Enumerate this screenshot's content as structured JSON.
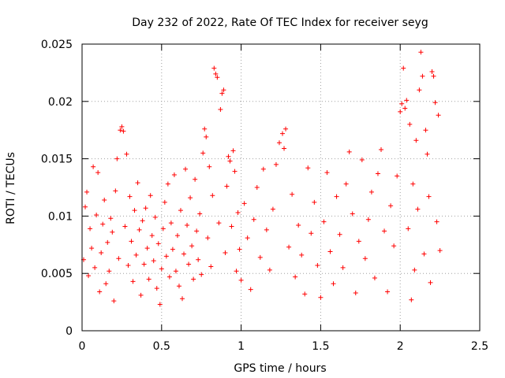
{
  "chart_data": {
    "type": "scatter",
    "title": "Day 232 of 2022, Rate Of TEC Index for receiver seyg",
    "xlabel": "GPS time / hours",
    "ylabel": "ROTI / TECUs",
    "xlim": [
      0,
      2.5
    ],
    "ylim": [
      0,
      0.025
    ],
    "x_ticks": [
      0,
      0.5,
      1,
      1.5,
      2,
      2.5
    ],
    "x_tick_labels": [
      "0",
      "0.5",
      "1",
      "1.5",
      "2",
      "2.5"
    ],
    "y_ticks": [
      0,
      0.005,
      0.01,
      0.015,
      0.02,
      0.025
    ],
    "y_tick_labels": [
      "0",
      "0.005",
      "0.01",
      "0.015",
      "0.02",
      "0.025"
    ],
    "grid": true,
    "marker": "+",
    "color": "#ff0000",
    "points": [
      [
        0.01,
        0.0062
      ],
      [
        0.02,
        0.0108
      ],
      [
        0.03,
        0.0121
      ],
      [
        0.04,
        0.0048
      ],
      [
        0.05,
        0.0089
      ],
      [
        0.06,
        0.0072
      ],
      [
        0.07,
        0.0143
      ],
      [
        0.08,
        0.0055
      ],
      [
        0.09,
        0.0101
      ],
      [
        0.1,
        0.0138
      ],
      [
        0.11,
        0.0034
      ],
      [
        0.12,
        0.0068
      ],
      [
        0.13,
        0.0093
      ],
      [
        0.14,
        0.0114
      ],
      [
        0.15,
        0.0041
      ],
      [
        0.16,
        0.0077
      ],
      [
        0.17,
        0.0052
      ],
      [
        0.18,
        0.0098
      ],
      [
        0.19,
        0.0086
      ],
      [
        0.2,
        0.0026
      ],
      [
        0.21,
        0.0122
      ],
      [
        0.22,
        0.015
      ],
      [
        0.23,
        0.0063
      ],
      [
        0.24,
        0.0175
      ],
      [
        0.25,
        0.0178
      ],
      [
        0.26,
        0.0174
      ],
      [
        0.27,
        0.0091
      ],
      [
        0.28,
        0.0154
      ],
      [
        0.29,
        0.0057
      ],
      [
        0.3,
        0.0117
      ],
      [
        0.31,
        0.0078
      ],
      [
        0.32,
        0.0043
      ],
      [
        0.33,
        0.0105
      ],
      [
        0.34,
        0.0066
      ],
      [
        0.35,
        0.0129
      ],
      [
        0.36,
        0.0088
      ],
      [
        0.37,
        0.0031
      ],
      [
        0.38,
        0.0096
      ],
      [
        0.39,
        0.0058
      ],
      [
        0.4,
        0.0107
      ],
      [
        0.41,
        0.0072
      ],
      [
        0.42,
        0.0045
      ],
      [
        0.43,
        0.0118
      ],
      [
        0.44,
        0.0083
      ],
      [
        0.45,
        0.0061
      ],
      [
        0.46,
        0.0099
      ],
      [
        0.47,
        0.0037
      ],
      [
        0.48,
        0.0076
      ],
      [
        0.49,
        0.0023
      ],
      [
        0.5,
        0.0054
      ],
      [
        0.51,
        0.0089
      ],
      [
        0.52,
        0.0112
      ],
      [
        0.53,
        0.0065
      ],
      [
        0.54,
        0.0128
      ],
      [
        0.55,
        0.0047
      ],
      [
        0.56,
        0.0094
      ],
      [
        0.57,
        0.0071
      ],
      [
        0.58,
        0.0136
      ],
      [
        0.59,
        0.0052
      ],
      [
        0.6,
        0.0083
      ],
      [
        0.61,
        0.0039
      ],
      [
        0.62,
        0.0105
      ],
      [
        0.63,
        0.0028
      ],
      [
        0.64,
        0.0067
      ],
      [
        0.65,
        0.0141
      ],
      [
        0.66,
        0.0092
      ],
      [
        0.67,
        0.0058
      ],
      [
        0.68,
        0.0116
      ],
      [
        0.69,
        0.0074
      ],
      [
        0.7,
        0.0045
      ],
      [
        0.71,
        0.0132
      ],
      [
        0.72,
        0.0087
      ],
      [
        0.73,
        0.0062
      ],
      [
        0.74,
        0.0102
      ],
      [
        0.75,
        0.0049
      ],
      [
        0.76,
        0.0155
      ],
      [
        0.77,
        0.0176
      ],
      [
        0.78,
        0.0169
      ],
      [
        0.79,
        0.0081
      ],
      [
        0.8,
        0.0143
      ],
      [
        0.81,
        0.0056
      ],
      [
        0.82,
        0.0118
      ],
      [
        0.83,
        0.0229
      ],
      [
        0.84,
        0.0224
      ],
      [
        0.85,
        0.0221
      ],
      [
        0.86,
        0.0094
      ],
      [
        0.87,
        0.0193
      ],
      [
        0.88,
        0.0207
      ],
      [
        0.89,
        0.021
      ],
      [
        0.9,
        0.0068
      ],
      [
        0.91,
        0.0126
      ],
      [
        0.92,
        0.0152
      ],
      [
        0.93,
        0.0148
      ],
      [
        0.94,
        0.0091
      ],
      [
        0.95,
        0.0157
      ],
      [
        0.96,
        0.0139
      ],
      [
        0.97,
        0.0052
      ],
      [
        0.98,
        0.0103
      ],
      [
        0.99,
        0.0071
      ],
      [
        1.0,
        0.0044
      ],
      [
        1.02,
        0.0111
      ],
      [
        1.04,
        0.0081
      ],
      [
        1.06,
        0.0036
      ],
      [
        1.08,
        0.0097
      ],
      [
        1.1,
        0.0125
      ],
      [
        1.12,
        0.0064
      ],
      [
        1.14,
        0.0141
      ],
      [
        1.16,
        0.0088
      ],
      [
        1.18,
        0.0053
      ],
      [
        1.2,
        0.0106
      ],
      [
        1.22,
        0.0145
      ],
      [
        1.24,
        0.0164
      ],
      [
        1.26,
        0.0172
      ],
      [
        1.27,
        0.0159
      ],
      [
        1.28,
        0.0176
      ],
      [
        1.3,
        0.0073
      ],
      [
        1.32,
        0.0119
      ],
      [
        1.34,
        0.0047
      ],
      [
        1.36,
        0.0092
      ],
      [
        1.38,
        0.0066
      ],
      [
        1.4,
        0.0032
      ],
      [
        1.42,
        0.0142
      ],
      [
        1.44,
        0.0085
      ],
      [
        1.46,
        0.0112
      ],
      [
        1.48,
        0.0057
      ],
      [
        1.5,
        0.0029
      ],
      [
        1.52,
        0.0095
      ],
      [
        1.54,
        0.0138
      ],
      [
        1.56,
        0.0069
      ],
      [
        1.58,
        0.0041
      ],
      [
        1.6,
        0.0117
      ],
      [
        1.62,
        0.0084
      ],
      [
        1.64,
        0.0055
      ],
      [
        1.66,
        0.0128
      ],
      [
        1.68,
        0.0156
      ],
      [
        1.7,
        0.0102
      ],
      [
        1.72,
        0.0033
      ],
      [
        1.74,
        0.0078
      ],
      [
        1.76,
        0.0149
      ],
      [
        1.78,
        0.0063
      ],
      [
        1.8,
        0.0097
      ],
      [
        1.82,
        0.0121
      ],
      [
        1.84,
        0.0046
      ],
      [
        1.86,
        0.0137
      ],
      [
        1.88,
        0.0158
      ],
      [
        1.9,
        0.0087
      ],
      [
        1.92,
        0.0034
      ],
      [
        1.94,
        0.0109
      ],
      [
        1.96,
        0.0074
      ],
      [
        1.98,
        0.0135
      ],
      [
        2.0,
        0.0191
      ],
      [
        2.01,
        0.0198
      ],
      [
        2.02,
        0.0229
      ],
      [
        2.03,
        0.0194
      ],
      [
        2.04,
        0.0201
      ],
      [
        2.05,
        0.0089
      ],
      [
        2.06,
        0.018
      ],
      [
        2.07,
        0.0027
      ],
      [
        2.08,
        0.0128
      ],
      [
        2.09,
        0.0053
      ],
      [
        2.1,
        0.0166
      ],
      [
        2.11,
        0.0106
      ],
      [
        2.12,
        0.021
      ],
      [
        2.13,
        0.0243
      ],
      [
        2.14,
        0.0222
      ],
      [
        2.15,
        0.0067
      ],
      [
        2.16,
        0.0175
      ],
      [
        2.17,
        0.0154
      ],
      [
        2.18,
        0.0117
      ],
      [
        2.19,
        0.0042
      ],
      [
        2.2,
        0.0226
      ],
      [
        2.21,
        0.0222
      ],
      [
        2.22,
        0.0199
      ],
      [
        2.23,
        0.0095
      ],
      [
        2.24,
        0.0188
      ],
      [
        2.25,
        0.007
      ]
    ]
  }
}
